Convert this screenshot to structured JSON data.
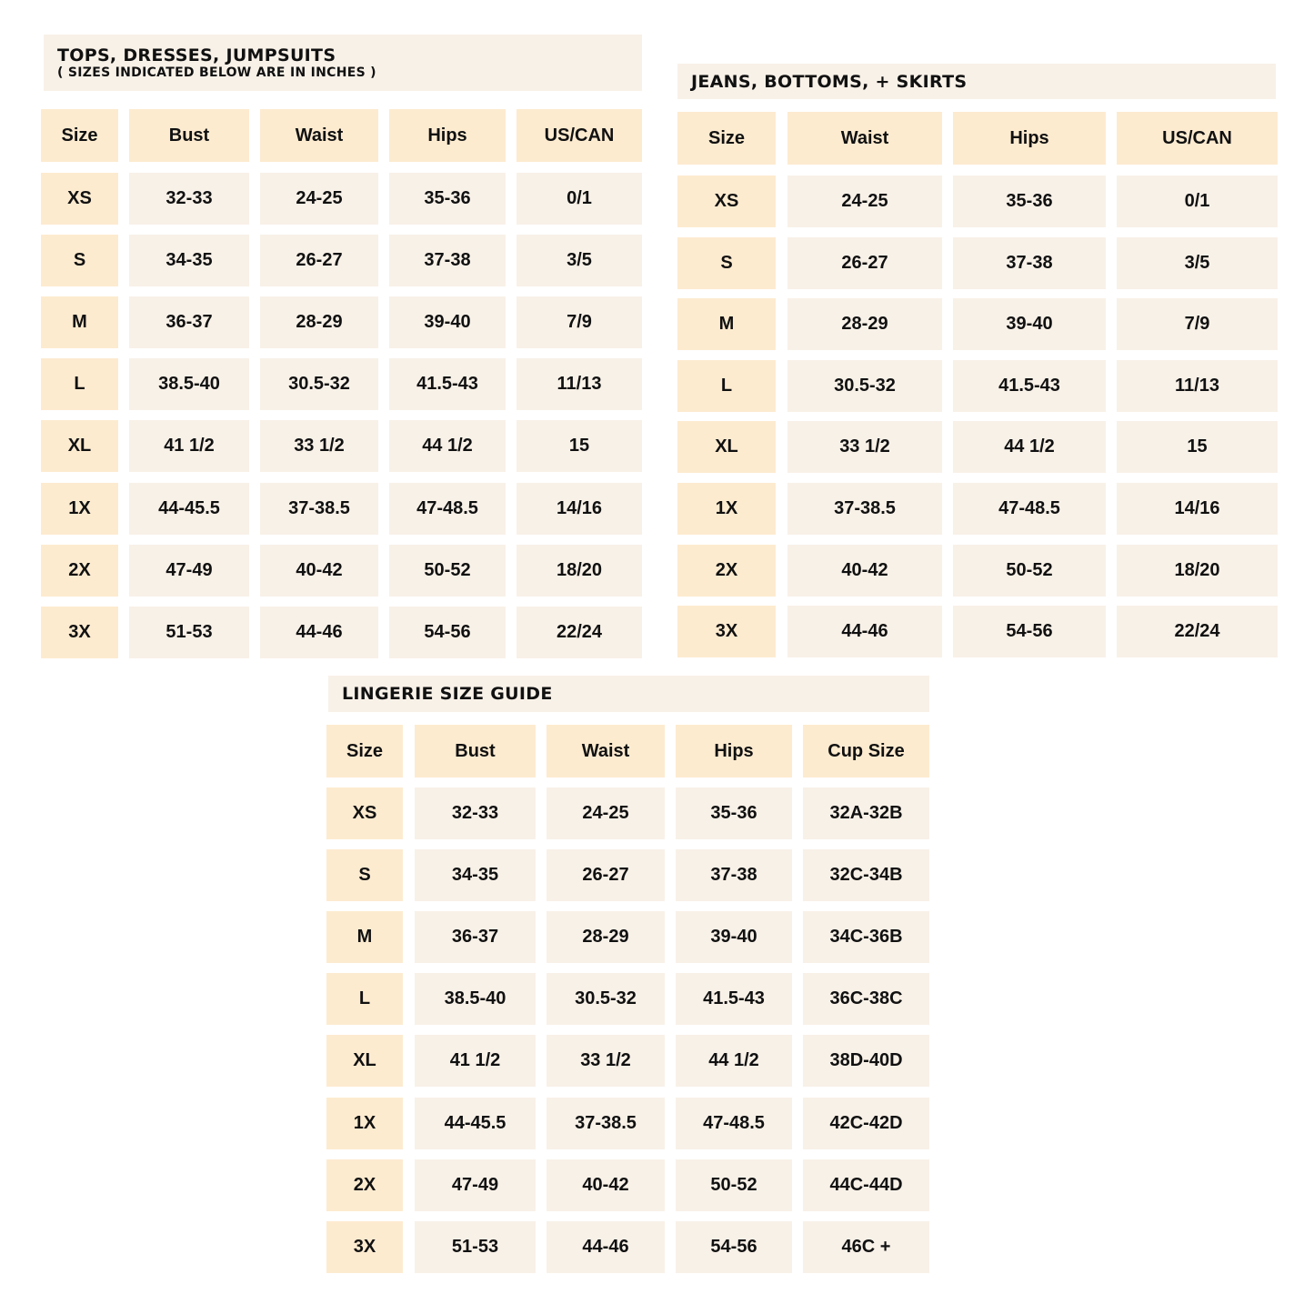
{
  "colors": {
    "header": "#fdebd0",
    "cell": "#f8f1e8",
    "text": "#111111"
  },
  "tables": [
    {
      "title": "TOPS, DRESSES, JUMPSUITS",
      "subtitle": "( SIZES INDICATED BELOW ARE IN INCHES )",
      "headers": [
        "Size",
        "Bust",
        "Waist",
        "Hips",
        "US/CAN"
      ],
      "rows": [
        [
          "XS",
          "32-33",
          "24-25",
          "35-36",
          "0/1"
        ],
        [
          "S",
          "34-35",
          "26-27",
          "37-38",
          "3/5"
        ],
        [
          "M",
          "36-37",
          "28-29",
          "39-40",
          "7/9"
        ],
        [
          "L",
          "38.5-40",
          "30.5-32",
          "41.5-43",
          "11/13"
        ],
        [
          "XL",
          "41 1/2",
          "33 1/2",
          "44 1/2",
          "15"
        ],
        [
          "1X",
          "44-45.5",
          "37-38.5",
          "47-48.5",
          "14/16"
        ],
        [
          "2X",
          "47-49",
          "40-42",
          "50-52",
          "18/20"
        ],
        [
          "3X",
          "51-53",
          "44-46",
          "54-56",
          "22/24"
        ]
      ]
    },
    {
      "title": "JEANS, BOTTOMS, + SKIRTS",
      "headers": [
        "Size",
        "Waist",
        "Hips",
        "US/CAN"
      ],
      "rows": [
        [
          "XS",
          "24-25",
          "35-36",
          "0/1"
        ],
        [
          "S",
          "26-27",
          "37-38",
          "3/5"
        ],
        [
          "M",
          "28-29",
          "39-40",
          "7/9"
        ],
        [
          "L",
          "30.5-32",
          "41.5-43",
          "11/13"
        ],
        [
          "XL",
          "33 1/2",
          "44 1/2",
          "15"
        ],
        [
          "1X",
          "37-38.5",
          "47-48.5",
          "14/16"
        ],
        [
          "2X",
          "40-42",
          "50-52",
          "18/20"
        ],
        [
          "3X",
          "44-46",
          "54-56",
          "22/24"
        ]
      ]
    },
    {
      "title": "LINGERIE SIZE GUIDE",
      "headers": [
        "Size",
        "Bust",
        "Waist",
        "Hips",
        "Cup Size"
      ],
      "rows": [
        [
          "XS",
          "32-33",
          "24-25",
          "35-36",
          "32A-32B"
        ],
        [
          "S",
          "34-35",
          "26-27",
          "37-38",
          "32C-34B"
        ],
        [
          "M",
          "36-37",
          "28-29",
          "39-40",
          "34C-36B"
        ],
        [
          "L",
          "38.5-40",
          "30.5-32",
          "41.5-43",
          "36C-38C"
        ],
        [
          "XL",
          "41 1/2",
          "33 1/2",
          "44 1/2",
          "38D-40D"
        ],
        [
          "1X",
          "44-45.5",
          "37-38.5",
          "47-48.5",
          "42C-42D"
        ],
        [
          "2X",
          "47-49",
          "40-42",
          "50-52",
          "44C-44D"
        ],
        [
          "3X",
          "51-53",
          "44-46",
          "54-56",
          "46C +"
        ]
      ]
    }
  ]
}
